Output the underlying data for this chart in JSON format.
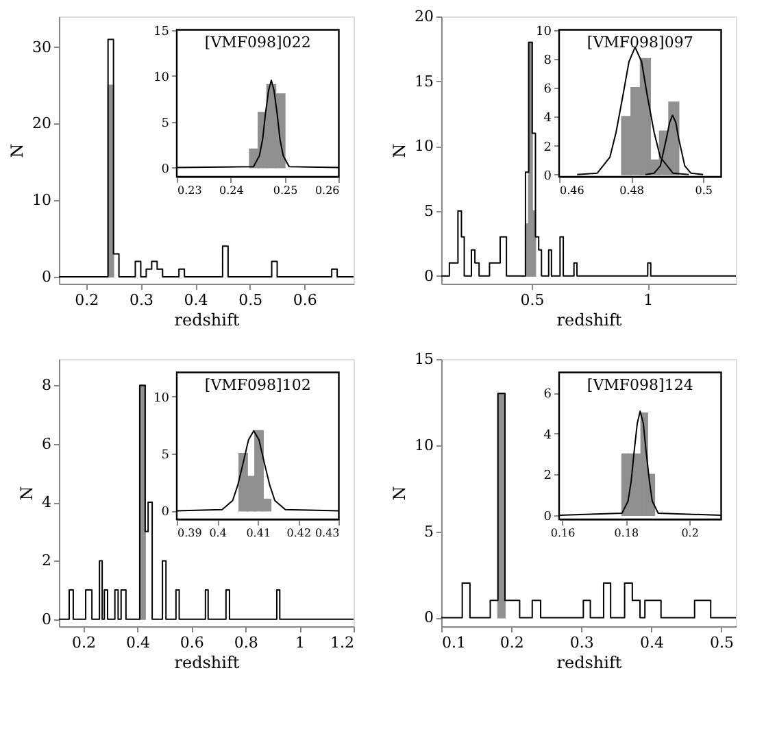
{
  "chart_data": [
    {
      "type": "histogram",
      "xlabel": "redshift",
      "ylabel": "N",
      "xlim": [
        0.15,
        0.69
      ],
      "xticks": [
        0.2,
        0.3,
        0.4,
        0.5,
        0.6
      ],
      "ylim": [
        -0.9,
        34
      ],
      "yticks": [
        0,
        10,
        20,
        30
      ],
      "bins": [
        0.24,
        0.25
      ],
      "series": [
        {
          "color": "#909090",
          "values": [
            25
          ]
        },
        {
          "type": "step",
          "color": "#000000",
          "x": [
            0.15,
            0.24,
            0.25,
            0.26,
            0.29,
            0.3,
            0.31,
            0.32,
            0.33,
            0.34,
            0.37,
            0.38,
            0.45,
            0.46,
            0.54,
            0.55,
            0.65,
            0.66,
            0.69
          ],
          "values": [
            0,
            31,
            3,
            0,
            2,
            0,
            1,
            2,
            1,
            0,
            1,
            0,
            4,
            0,
            2,
            0,
            1,
            0,
            0
          ]
        }
      ]
    },
    {
      "type": "histogram",
      "annotations": [
        "[VMF098]022"
      ],
      "xlim": [
        0.23,
        0.26
      ],
      "xticks": [
        0.23,
        0.24,
        0.25,
        0.26
      ],
      "ylim": [
        -1,
        15
      ],
      "yticks": [
        0,
        5,
        10,
        15
      ],
      "bins": [
        0.2435,
        0.2451,
        0.2467,
        0.2483,
        0.25
      ],
      "series": [
        {
          "color": "#909090",
          "values": [
            2,
            6,
            9,
            8
          ]
        },
        {
          "type": "line",
          "color": "#000000",
          "x": [
            0.23,
            0.2442,
            0.2453,
            0.2459,
            0.2464,
            0.247,
            0.2475,
            0.248,
            0.2486,
            0.2491,
            0.2497,
            0.2508,
            0.26
          ],
          "values": [
            0,
            0.1,
            1.3,
            3.1,
            5.8,
            8.4,
            9.5,
            8.4,
            5.8,
            3.1,
            1.3,
            0.1,
            0
          ]
        }
      ]
    },
    {
      "type": "histogram",
      "xlabel": "redshift",
      "ylabel": "N",
      "xlim": [
        0.11,
        1.38
      ],
      "xticks": [
        0.5,
        1
      ],
      "ylim": [
        -0.6,
        20
      ],
      "yticks": [
        0,
        5,
        10,
        15,
        20
      ],
      "bins": [
        0.473,
        0.487,
        0.502,
        0.516
      ],
      "series": [
        {
          "color": "#909090",
          "values": [
            4,
            18,
            5
          ]
        },
        {
          "type": "step",
          "color": "#000000",
          "x": [
            0.11,
            0.145,
            0.182,
            0.197,
            0.209,
            0.24,
            0.255,
            0.273,
            0.318,
            0.364,
            0.391,
            0.473,
            0.487,
            0.502,
            0.516,
            0.53,
            0.542,
            0.573,
            0.585,
            0.622,
            0.636,
            0.682,
            0.695,
            1.0,
            1.013,
            1.38
          ],
          "values": [
            0,
            1,
            5,
            3,
            0,
            2,
            1,
            0,
            1,
            3,
            0,
            8,
            18,
            11,
            3,
            2,
            0,
            2,
            0,
            3,
            0,
            1,
            0,
            1,
            0,
            0
          ]
        }
      ]
    },
    {
      "type": "histogram",
      "annotations": [
        "[VMF098]097"
      ],
      "xlim": [
        0.46,
        0.505
      ],
      "xticks": [
        0.46,
        0.48,
        0.5
      ],
      "ylim": [
        -0.15,
        10
      ],
      "yticks": [
        0,
        2,
        4,
        6,
        8,
        10
      ],
      "bins": [
        0.4774,
        0.48,
        0.4826,
        0.4853,
        0.4879,
        0.4905,
        0.4932
      ],
      "series": [
        {
          "color": "#909090",
          "values": [
            4,
            6,
            8,
            1,
            3,
            5
          ]
        },
        {
          "type": "line",
          "color": "#000000",
          "x": [
            0.465,
            0.4706,
            0.4741,
            0.4758,
            0.4776,
            0.4794,
            0.4811,
            0.4829,
            0.4846,
            0.4864,
            0.4881,
            0.4916,
            0.496
          ],
          "values": [
            0,
            0.1,
            1.2,
            2.9,
            5.3,
            7.8,
            8.8,
            7.8,
            5.3,
            2.9,
            1.2,
            0.1,
            0
          ]
        },
        {
          "type": "line",
          "color": "#000000",
          "x": [
            0.484,
            0.4864,
            0.4881,
            0.4898,
            0.4907,
            0.4915,
            0.4924,
            0.4932,
            0.4949,
            0.4966,
            0.5
          ],
          "values": [
            0,
            0.1,
            0.6,
            2.5,
            3.6,
            4.1,
            3.6,
            2.5,
            0.6,
            0.1,
            0
          ]
        }
      ]
    },
    {
      "type": "histogram",
      "xlabel": "redshift",
      "ylabel": "N",
      "xlim": [
        0.11,
        1.2
      ],
      "xticks": [
        0.2,
        0.4,
        0.6,
        0.8,
        1,
        1.2
      ],
      "ylim": [
        -0.24,
        8.9
      ],
      "yticks": [
        0,
        2,
        4,
        6,
        8
      ],
      "bins": [
        0.409,
        0.429
      ],
      "series": [
        {
          "color": "#909090",
          "values": [
            8
          ]
        },
        {
          "type": "step",
          "color": "#000000",
          "x": [
            0.11,
            0.148,
            0.163,
            0.209,
            0.232,
            0.26,
            0.27,
            0.278,
            0.29,
            0.317,
            0.329,
            0.34,
            0.358,
            0.409,
            0.429,
            0.44,
            0.455,
            0.493,
            0.506,
            0.543,
            0.555,
            0.652,
            0.662,
            0.728,
            0.741,
            0.916,
            0.927,
            1.2
          ],
          "values": [
            0,
            1,
            0,
            1,
            0,
            2,
            0,
            1,
            0,
            1,
            0,
            1,
            0,
            8,
            3,
            4,
            0,
            2,
            0,
            1,
            0,
            1,
            0,
            1,
            0,
            1,
            0,
            0
          ]
        }
      ]
    },
    {
      "type": "histogram",
      "annotations": [
        "[VMF098]102"
      ],
      "xlim": [
        0.39,
        0.43
      ],
      "xticks": [
        0.39,
        0.4,
        0.41,
        0.42,
        0.43
      ],
      "ylim": [
        -0.75,
        12.1
      ],
      "yticks": [
        0,
        5,
        10
      ],
      "bins": [
        0.4054,
        0.4074,
        0.4093,
        0.4113,
        0.4132
      ],
      "series": [
        {
          "color": "#909090",
          "values": [
            5,
            3,
            7,
            1
          ]
        },
        {
          "type": "line",
          "color": "#000000",
          "x": [
            0.39,
            0.4012,
            0.4038,
            0.4051,
            0.4064,
            0.4077,
            0.409,
            0.4103,
            0.4116,
            0.4129,
            0.4142,
            0.4168,
            0.43
          ],
          "values": [
            0,
            0.1,
            0.9,
            2.3,
            4.2,
            6.2,
            7,
            6.2,
            4.2,
            2.3,
            0.9,
            0.1,
            0
          ]
        }
      ]
    },
    {
      "type": "histogram",
      "xlabel": "redshift",
      "ylabel": "N",
      "xlim": [
        0.1,
        0.521
      ],
      "xticks": [
        0.1,
        0.2,
        0.3,
        0.4,
        0.5
      ],
      "ylim": [
        -0.5,
        15
      ],
      "yticks": [
        0,
        5,
        10,
        15
      ],
      "bins": [
        0.181,
        0.191
      ],
      "series": [
        {
          "color": "#909090",
          "values": [
            13
          ]
        },
        {
          "type": "step",
          "color": "#000000",
          "x": [
            0.1,
            0.13,
            0.141,
            0.17,
            0.181,
            0.191,
            0.212,
            0.23,
            0.242,
            0.303,
            0.313,
            0.332,
            0.342,
            0.362,
            0.373,
            0.384,
            0.391,
            0.414,
            0.462,
            0.485,
            0.521
          ],
          "values": [
            0,
            2,
            0,
            1,
            13,
            1,
            0,
            1,
            0,
            1,
            0,
            2,
            0,
            2,
            1,
            0,
            1,
            0,
            1,
            0,
            0
          ]
        }
      ]
    },
    {
      "type": "histogram",
      "annotations": [
        "[VMF098]124"
      ],
      "xlim": [
        0.159,
        0.21
      ],
      "xticks": [
        0.16,
        0.18,
        0.2
      ],
      "ylim": [
        -0.2,
        7
      ],
      "yticks": [
        0,
        2,
        4,
        6
      ],
      "bins": [
        0.1788,
        0.1808,
        0.1828,
        0.1848,
        0.1868,
        0.189
      ],
      "series": [
        {
          "color": "#909090",
          "values": [
            3,
            3,
            3,
            5,
            2
          ]
        },
        {
          "type": "line",
          "color": "#000000",
          "x": [
            0.159,
            0.1788,
            0.1807,
            0.1817,
            0.1826,
            0.1836,
            0.1845,
            0.1855,
            0.1864,
            0.1874,
            0.1883,
            0.1902,
            0.21
          ],
          "values": [
            0,
            0.1,
            0.7,
            1.7,
            3.1,
            4.5,
            5.1,
            4.5,
            3.1,
            1.7,
            0.7,
            0.1,
            0
          ]
        }
      ]
    }
  ]
}
